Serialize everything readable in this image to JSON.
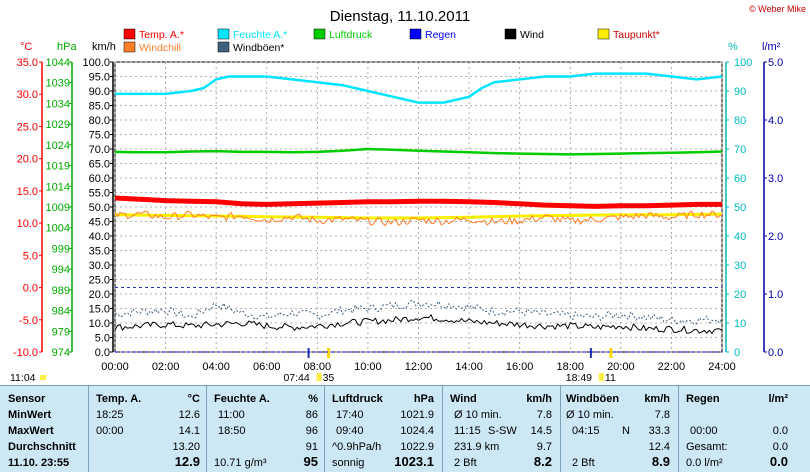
{
  "chart_data": {
    "type": "line",
    "title": "Dienstag, 11.10.2011",
    "copyright": "© Weber Mike",
    "legend": [
      {
        "name": "Temp. A.*",
        "color": "#ff0000"
      },
      {
        "name": "Feuchte A.*",
        "color": "#00e5ff"
      },
      {
        "name": "Luftdruck",
        "color": "#00cc00"
      },
      {
        "name": "Regen",
        "color": "#0000ff"
      },
      {
        "name": "Wind",
        "color": "#000000"
      },
      {
        "name": "Taupunkt*",
        "color": "#ffee00"
      },
      {
        "name": "Windchill",
        "color": "#ff7f27"
      },
      {
        "name": "Windböen*",
        "color": "#406080"
      }
    ],
    "axes": {
      "temp": {
        "unit": "°C",
        "ticks": [
          "35.0",
          "30.0",
          "25.0",
          "20.0",
          "15.0",
          "10.0",
          "5.0",
          "0.0",
          "-5.0",
          "-10.0"
        ],
        "range": [
          -10,
          35
        ],
        "color": "#ff0000"
      },
      "pressure": {
        "unit": "hPa",
        "ticks": [
          "1044",
          "1039",
          "1034",
          "1029",
          "1024",
          "1019",
          "1014",
          "1009",
          "1004",
          "999",
          "994",
          "989",
          "984",
          "979",
          "974"
        ],
        "range": [
          974,
          1044
        ],
        "color": "#00aa00"
      },
      "wind": {
        "unit": "km/h",
        "ticks": [
          "100.0",
          "95.0",
          "90.0",
          "85.0",
          "80.0",
          "75.0",
          "70.0",
          "65.0",
          "60.0",
          "55.0",
          "50.0",
          "45.0",
          "40.0",
          "35.0",
          "30.0",
          "25.0",
          "20.0",
          "15.0",
          "10.0",
          "5.0",
          "0.0"
        ],
        "range": [
          0,
          100
        ],
        "color": "#000000"
      },
      "humidity": {
        "unit": "%",
        "ticks": [
          "100",
          "90",
          "80",
          "70",
          "60",
          "50",
          "40",
          "30",
          "20",
          "10",
          "0"
        ],
        "range": [
          0,
          100
        ],
        "color": "#00bbbb"
      },
      "rain": {
        "unit": "l/m²",
        "ticks": [
          "5.0",
          "4.0",
          "3.0",
          "2.0",
          "1.0",
          "0.0"
        ],
        "range": [
          0,
          5
        ],
        "color": "#0000aa"
      }
    },
    "x_ticks": [
      "00:00",
      "02:00",
      "04:00",
      "06:00",
      "08:00",
      "10:00",
      "12:00",
      "14:00",
      "16:00",
      "18:00",
      "20:00",
      "22:00",
      "24:00"
    ],
    "sunrise": "07:44",
    "sunset": "18:49",
    "moonrise_label": "11:04",
    "sunrise_extra": "35",
    "sunset_extra": "11",
    "series": [
      {
        "name": "Temp. A.*",
        "axis": "temp",
        "x": [
          0,
          1,
          2,
          3,
          4,
          5,
          6,
          7,
          8,
          9,
          10,
          11,
          12,
          13,
          14,
          15,
          16,
          17,
          18,
          19,
          20,
          21,
          22,
          23,
          24
        ],
        "values": [
          13.9,
          13.7,
          13.5,
          13.4,
          13.3,
          13.0,
          12.9,
          13.0,
          13.1,
          13.2,
          13.3,
          13.3,
          13.4,
          13.4,
          13.3,
          13.2,
          13.0,
          12.8,
          12.7,
          12.6,
          12.7,
          12.7,
          12.8,
          12.9,
          12.9
        ]
      },
      {
        "name": "Feuchte A.*",
        "axis": "humidity",
        "x": [
          0,
          1,
          2,
          3,
          3.5,
          4,
          4.5,
          5,
          6,
          7,
          8,
          9,
          10,
          11,
          12,
          13,
          13.5,
          14,
          14.5,
          15,
          16,
          17,
          18,
          19,
          20,
          21,
          22,
          23,
          24
        ],
        "values": [
          89,
          89,
          89,
          90,
          91,
          94,
          95,
          95,
          95,
          94,
          93,
          92,
          90,
          88,
          86,
          86,
          87,
          88,
          91,
          93,
          94,
          95,
          95,
          96,
          96,
          96,
          95,
          94,
          95
        ]
      },
      {
        "name": "Luftdruck",
        "axis": "pressure",
        "x": [
          0,
          1,
          2,
          3,
          4,
          5,
          6,
          7,
          8,
          9,
          10,
          11,
          12,
          13,
          14,
          15,
          16,
          17,
          18,
          19,
          20,
          21,
          22,
          23,
          24
        ],
        "values": [
          1022.3,
          1022.2,
          1022.2,
          1022.4,
          1022.5,
          1022.3,
          1022.3,
          1022.2,
          1022.3,
          1022.6,
          1023.0,
          1022.8,
          1022.6,
          1022.4,
          1022.2,
          1022.0,
          1021.9,
          1021.8,
          1021.7,
          1021.8,
          1021.9,
          1022.0,
          1022.1,
          1022.2,
          1022.4
        ]
      },
      {
        "name": "Regen",
        "axis": "rain",
        "x": [
          0,
          24
        ],
        "values": [
          0,
          0
        ]
      },
      {
        "name": "Wind",
        "axis": "wind",
        "x": [
          0,
          1,
          2,
          3,
          4,
          5,
          6,
          7,
          8,
          9,
          10,
          11,
          12,
          13,
          14,
          15,
          16,
          17,
          18,
          19,
          20,
          21,
          22,
          23,
          24
        ],
        "values": [
          8.5,
          9.0,
          9.5,
          9.0,
          9.5,
          10.0,
          9.0,
          8.5,
          9.0,
          10.0,
          10.5,
          11.0,
          12.0,
          11.5,
          10.5,
          10.0,
          9.5,
          9.0,
          9.0,
          8.5,
          9.0,
          8.0,
          8.0,
          7.5,
          7.5
        ]
      },
      {
        "name": "Taupunkt*",
        "axis": "temp",
        "x": [
          0,
          2,
          4,
          6,
          8,
          10,
          12,
          14,
          16,
          18,
          20,
          22,
          24
        ],
        "values": [
          11.3,
          11.2,
          11.1,
          11.0,
          10.9,
          10.8,
          10.8,
          10.9,
          11.1,
          11.2,
          11.3,
          11.3,
          11.4
        ]
      },
      {
        "name": "Windchill",
        "axis": "temp",
        "x": [
          0,
          1,
          2,
          3,
          4,
          5,
          6,
          7,
          8,
          9,
          10,
          11,
          12,
          13,
          14,
          15,
          16,
          17,
          18,
          19,
          20,
          21,
          22,
          23,
          24
        ],
        "values": [
          11.2,
          11.4,
          10.9,
          11.3,
          10.8,
          11.2,
          10.5,
          11.0,
          10.4,
          10.6,
          10.3,
          10.1,
          10.5,
          10.3,
          10.6,
          10.2,
          10.4,
          10.9,
          10.3,
          10.6,
          10.9,
          11.2,
          10.9,
          11.4,
          11.3
        ]
      },
      {
        "name": "Windböen*",
        "axis": "wind",
        "x": [
          0,
          1,
          2,
          3,
          4,
          5,
          6,
          7,
          8,
          9,
          10,
          11,
          12,
          13,
          14,
          15,
          16,
          17,
          18,
          19,
          20,
          21,
          22,
          23,
          24
        ],
        "values": [
          13.0,
          14.0,
          14.5,
          12.0,
          16.5,
          13.5,
          12.0,
          13.5,
          12.5,
          14.5,
          15.0,
          16.0,
          17.0,
          16.5,
          15.5,
          14.0,
          14.0,
          13.0,
          12.5,
          12.0,
          13.0,
          12.0,
          11.0,
          11.0,
          11.5
        ]
      }
    ]
  },
  "stats": {
    "col1": {
      "header": "Sensor",
      "rows": [
        "MinWert",
        "MaxWert",
        "Durchschnitt"
      ],
      "footer": "11.10. 23:55"
    },
    "col2": {
      "header": "Temp. A.",
      "unit": "°C",
      "min_time": "18:25",
      "min_val": "12.6",
      "max_time": "00:00",
      "max_val": "14.1",
      "avg": "13.20",
      "current": "12.9"
    },
    "col3": {
      "header": "Feuchte A.",
      "unit": "%",
      "min_time": "11:00",
      "min_val": "86",
      "max_time": "18:50",
      "max_val": "96",
      "avg": "91",
      "extra": "10.71 g/m³",
      "current": "95"
    },
    "col4": {
      "header": "Luftdruck",
      "unit": "hPa",
      "min_time": "17:40",
      "min_val": "1021.9",
      "max_time": "09:40",
      "max_val": "1024.4",
      "trend": "^0.9hPa/h",
      "avg": "1022.9",
      "forecast": "sonnig",
      "current": "1023.1"
    },
    "col5": {
      "header": "Wind",
      "unit": "km/h",
      "r1a": "Ø 10 min.",
      "r1b": "7.8",
      "r2a": "11:15",
      "r2dir": "S-SW",
      "r2b": "14.5",
      "r3a": "231.9 km",
      "r3b": "9.7",
      "r4a": "2 Bft",
      "current": "8.2"
    },
    "col6": {
      "header": "Windböen",
      "unit": "km/h",
      "r1a": "Ø 10 min.",
      "r1b": "7.8",
      "r2a": "04:15",
      "r2dir": "N",
      "r2b": "33.3",
      "r3b": "12.4",
      "r4a": "2 Bft",
      "current": "8.9"
    },
    "col7": {
      "header": "Regen",
      "unit": "l/m²",
      "r2a": "00:00",
      "r2b": "0.0",
      "r3a": "Gesamt:",
      "r3b": "0.0",
      "r4a": "0.0 l/m²",
      "current": "0.0"
    }
  }
}
